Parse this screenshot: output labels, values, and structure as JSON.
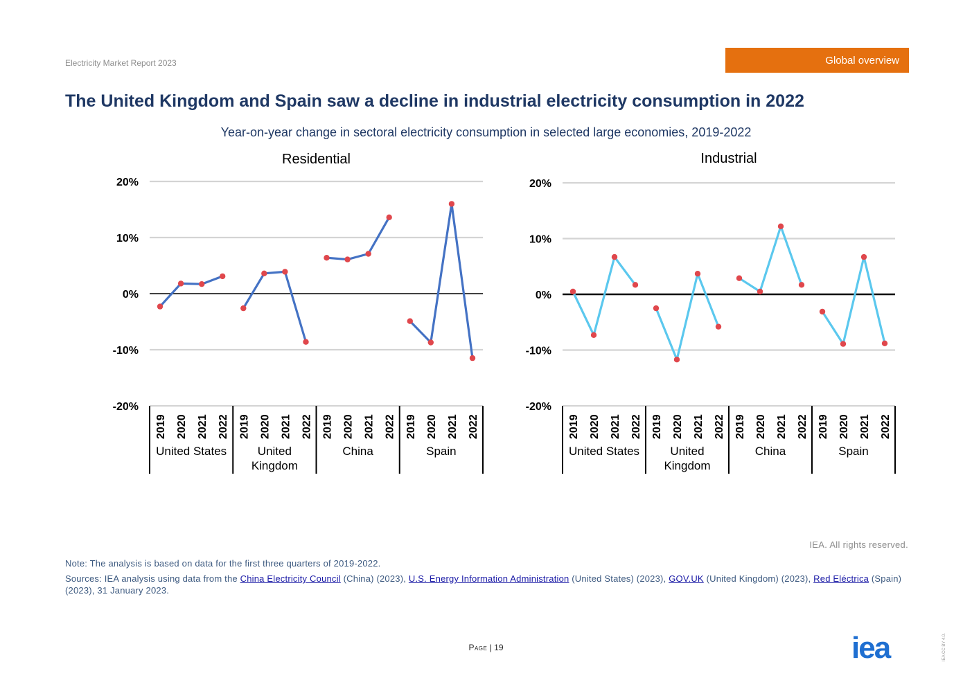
{
  "header": {
    "report_name": "Electricity Market Report 2023",
    "section_tag": "Global overview"
  },
  "headline": "The United Kingdom and Spain saw a decline in industrial electricity consumption in 2022",
  "subtitle": "Year-on-year change in sectoral electricity consumption in selected large economies, 2019-2022",
  "chart_data": [
    {
      "type": "line",
      "title": "Residential",
      "ylim": [
        -0.2,
        0.2
      ],
      "yticks": [
        "-20%",
        "-10%",
        "0%",
        "10%",
        "20%"
      ],
      "grid": true,
      "color": "#4472C4",
      "marker_color": "#E0474C",
      "groups": [
        {
          "name": "United States",
          "label_lines": [
            "United States"
          ],
          "years": [
            "2019",
            "2020",
            "2021",
            "2022"
          ],
          "values": [
            -0.023,
            0.018,
            0.017,
            0.031
          ]
        },
        {
          "name": "United Kingdom",
          "label_lines": [
            "United",
            "Kingdom"
          ],
          "years": [
            "2019",
            "2020",
            "2021",
            "2022"
          ],
          "values": [
            -0.026,
            0.036,
            0.039,
            -0.086
          ]
        },
        {
          "name": "China",
          "label_lines": [
            "China"
          ],
          "years": [
            "2019",
            "2020",
            "2021",
            "2022"
          ],
          "values": [
            0.064,
            0.061,
            0.071,
            0.136
          ]
        },
        {
          "name": "Spain",
          "label_lines": [
            "Spain"
          ],
          "years": [
            "2019",
            "2020",
            "2021",
            "2022"
          ],
          "values": [
            -0.049,
            -0.087,
            0.16,
            -0.115
          ]
        }
      ]
    },
    {
      "type": "line",
      "title": "Industrial",
      "ylim": [
        -0.2,
        0.2
      ],
      "yticks": [
        "-20%",
        "-10%",
        "0%",
        "10%",
        "20%"
      ],
      "grid": true,
      "color": "#5BC8EE",
      "marker_color": "#E0474C",
      "groups": [
        {
          "name": "United States",
          "label_lines": [
            "United States"
          ],
          "years": [
            "2019",
            "2020",
            "2021",
            "2022"
          ],
          "values": [
            0.005,
            -0.073,
            0.067,
            0.017
          ]
        },
        {
          "name": "United Kingdom",
          "label_lines": [
            "United",
            "Kingdom"
          ],
          "years": [
            "2019",
            "2020",
            "2021",
            "2022"
          ],
          "values": [
            -0.025,
            -0.117,
            0.037,
            -0.058
          ]
        },
        {
          "name": "China",
          "label_lines": [
            "China"
          ],
          "years": [
            "2019",
            "2020",
            "2021",
            "2022"
          ],
          "values": [
            0.029,
            0.005,
            0.122,
            0.017
          ]
        },
        {
          "name": "Spain",
          "label_lines": [
            "Spain"
          ],
          "years": [
            "2019",
            "2020",
            "2021",
            "2022"
          ],
          "values": [
            -0.031,
            -0.089,
            0.067,
            -0.088
          ]
        }
      ]
    }
  ],
  "footer": {
    "rights": "IEA. All rights reserved.",
    "note": "Note: The analysis is based on data for the first three quarters of 2019-2022.",
    "sources_prefix": "Sources: IEA analysis using data from the",
    "link_cec": "China Electricity Council",
    "text_cec": "(China) (2023),",
    "link_eia": "U.S. Energy Information Administration",
    "text_eia": "(United States) (2023),",
    "link_gov": "GOV.UK",
    "text_gov": "(United Kingdom) (2023),",
    "link_ree": "Red Eléctrica",
    "text_ree": "(Spain) (2023), 31 January 2023.",
    "page_word": "Page",
    "page_sep": "|",
    "page_number": "19",
    "logo_text": "iea",
    "license_text": "IEA CC BY 4.0."
  }
}
